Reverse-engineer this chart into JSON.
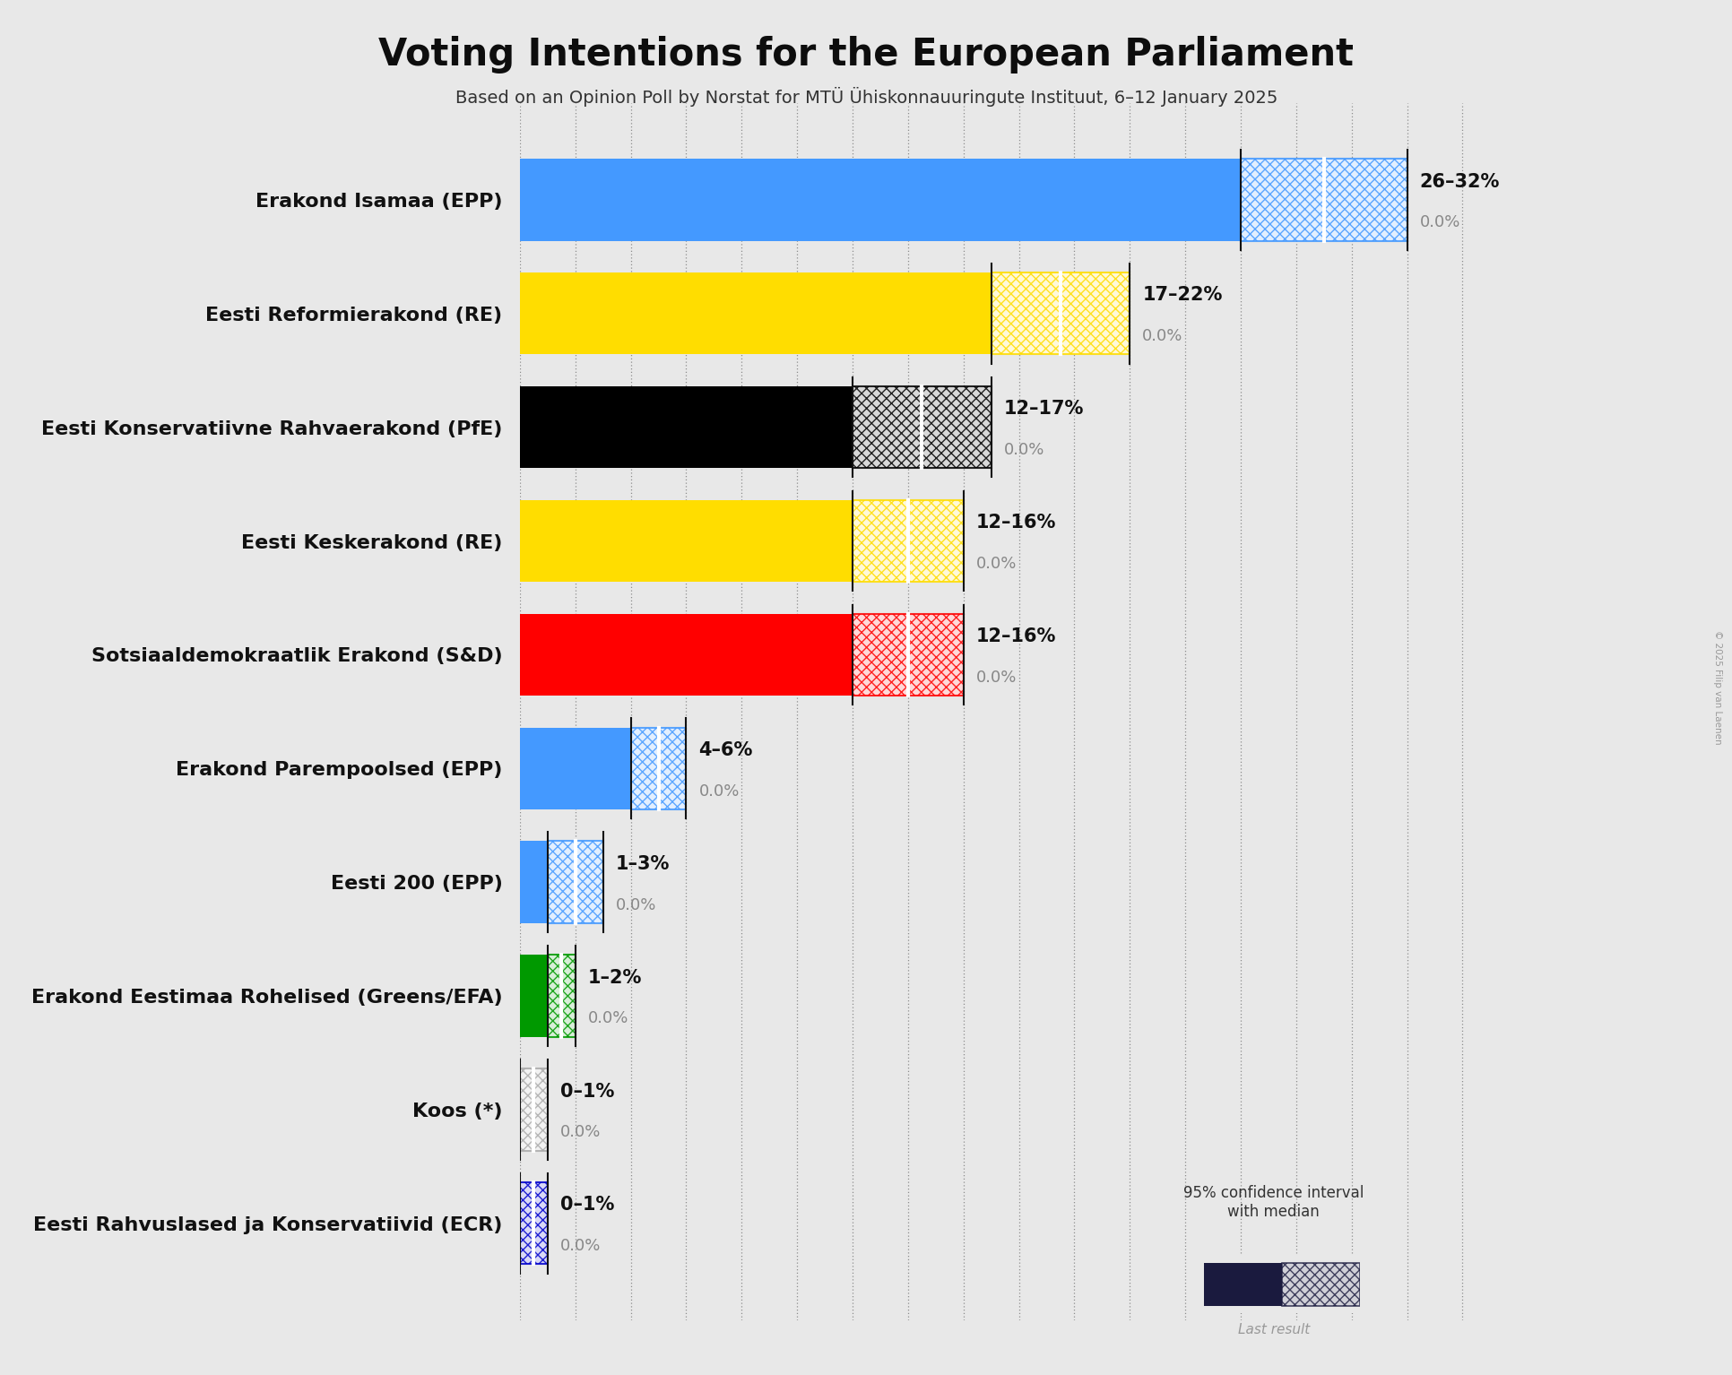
{
  "title": "Voting Intentions for the European Parliament",
  "subtitle": "Based on an Opinion Poll by Norstat for MTÜ Ühiskonnauuringute Instituut, 6–12 January 2025",
  "copyright": "© 2025 Filip van Laenen",
  "background_color": "#e8e8e8",
  "parties": [
    {
      "name": "Erakond Isamaa (EPP)",
      "low": 26,
      "median": 29,
      "high": 32,
      "last_result": 0.0,
      "color": "#4499FF",
      "label": "26–32%"
    },
    {
      "name": "Eesti Reformierakond (RE)",
      "low": 17,
      "median": 19.5,
      "high": 22,
      "last_result": 0.0,
      "color": "#FFDD00",
      "label": "17–22%"
    },
    {
      "name": "Eesti Konservatiivne Rahvaerakond (PfE)",
      "low": 12,
      "median": 14.5,
      "high": 17,
      "last_result": 0.0,
      "color": "#000000",
      "label": "12–17%"
    },
    {
      "name": "Eesti Keskerakond (RE)",
      "low": 12,
      "median": 14,
      "high": 16,
      "last_result": 0.0,
      "color": "#FFDD00",
      "label": "12–16%"
    },
    {
      "name": "Sotsiaaldemokraatlik Erakond (S&D)",
      "low": 12,
      "median": 14,
      "high": 16,
      "last_result": 0.0,
      "color": "#FF0000",
      "label": "12–16%"
    },
    {
      "name": "Erakond Parempoolsed (EPP)",
      "low": 4,
      "median": 5,
      "high": 6,
      "last_result": 0.0,
      "color": "#4499FF",
      "label": "4–6%"
    },
    {
      "name": "Eesti 200 (EPP)",
      "low": 1,
      "median": 2,
      "high": 3,
      "last_result": 0.0,
      "color": "#4499FF",
      "label": "1–3%"
    },
    {
      "name": "Erakond Eestimaa Rohelised (Greens/EFA)",
      "low": 1,
      "median": 1.5,
      "high": 2,
      "last_result": 0.0,
      "color": "#009900",
      "label": "1–2%"
    },
    {
      "name": "Koos (*)",
      "low": 0,
      "median": 0.5,
      "high": 1,
      "last_result": 0.0,
      "color": "#AAAAAA",
      "label": "0–1%"
    },
    {
      "name": "Eesti Rahvuslased ja Konservatiivid (ECR)",
      "low": 0,
      "median": 0.5,
      "high": 1,
      "last_result": 0.0,
      "color": "#0000CC",
      "label": "0–1%"
    }
  ],
  "xlim": [
    0,
    35
  ],
  "tick_interval": 2,
  "bar_height": 0.72,
  "grid_color": "#777777",
  "label_fontsize": 16,
  "value_fontsize": 15,
  "last_result_fontsize": 13,
  "title_fontsize": 30,
  "subtitle_fontsize": 14,
  "legend_dark_color": "#1a1a3e"
}
